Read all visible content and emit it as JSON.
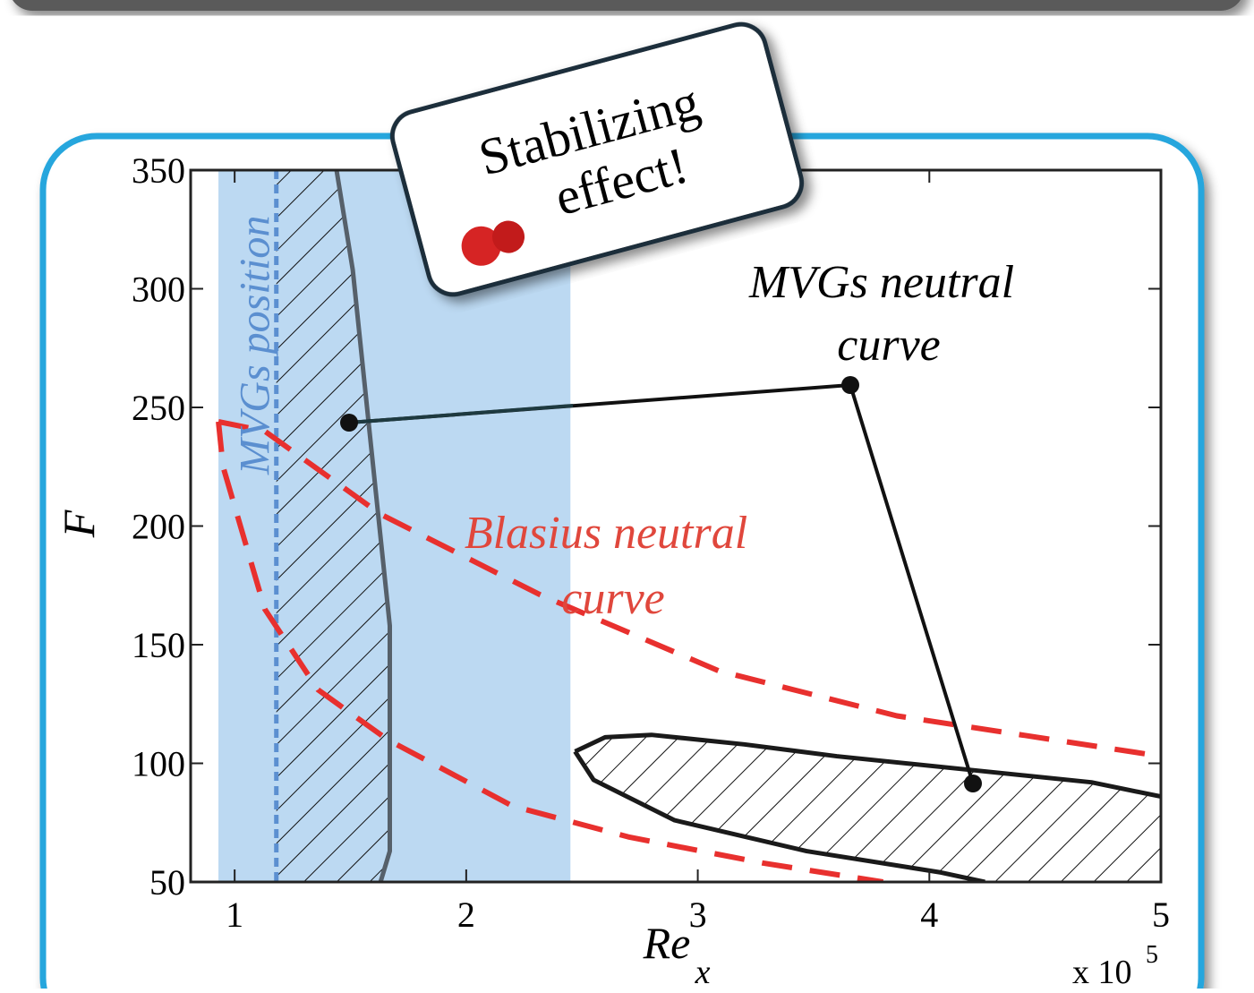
{
  "chart_data": {
    "type": "line",
    "xlim": [
      0.81,
      5
    ],
    "ylim": [
      50,
      350
    ],
    "xticks": [
      1,
      2,
      3,
      4,
      5
    ],
    "yticks": [
      50,
      100,
      150,
      200,
      250,
      300,
      350
    ],
    "x_label": "Re",
    "x_label_sub": "x",
    "y_label": "F",
    "multiplier": {
      "base": "x 10",
      "exponent": "5"
    },
    "band": {
      "x": [
        0.93,
        2.45
      ],
      "color": "#bcd9f2"
    },
    "position_line": {
      "x": 1.18,
      "label": "MVGs position",
      "color": "#5b8fd0"
    },
    "series": [
      {
        "color": "#e8302e",
        "dashed": true,
        "x": [
          0.93,
          1.13,
          1.63,
          2.32,
          3.09,
          3.86,
          5
        ],
        "values": [
          244,
          240,
          205,
          171,
          139,
          120,
          103
        ]
      },
      {
        "color": "#e8302e",
        "dashed": true,
        "x": [
          0.93,
          0.95,
          1.13,
          1.36,
          1.66,
          2.2,
          2.7,
          3.28,
          3.8
        ],
        "values": [
          244,
          225,
          165,
          131,
          110,
          82,
          69,
          58,
          50
        ]
      },
      {
        "color": "#56606a",
        "dashed": false,
        "hatch_to_x": 1.18,
        "x": [
          1.44,
          1.51,
          1.61,
          1.67,
          1.67,
          1.63
        ],
        "values": [
          350,
          308,
          214,
          158,
          63,
          50
        ]
      },
      {
        "color": "#1a1a1a",
        "dashed": false,
        "x": [
          2.47,
          2.6,
          2.8,
          3.2,
          3.6,
          4.2,
          4.7,
          5
        ],
        "values": [
          105,
          111,
          112,
          108,
          103,
          97,
          92,
          86
        ]
      },
      {
        "color": "#1a1a1a",
        "dashed": false,
        "x": [
          2.47,
          2.55,
          2.9,
          3.47,
          4.05,
          4.24
        ],
        "values": [
          105,
          93,
          76,
          63,
          54,
          50
        ]
      }
    ],
    "annotations": {
      "blasius": [
        "Blasius neutral",
        "curve"
      ],
      "mvgs": [
        "MVGs neutral",
        "curve"
      ],
      "note": [
        "Stabilizing",
        "effect!"
      ]
    }
  }
}
